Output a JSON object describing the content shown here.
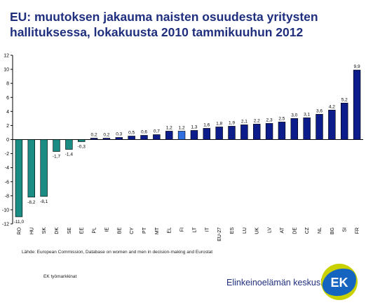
{
  "title_line1": "EU: muutoksen jakauma naisten osuudesta yritysten",
  "title_line2": "hallituksessa, lokakuusta 2010 tammikuuhun 2012",
  "source": "Lähde: European Commission, Database on women and men  in decision-making and Eurostat",
  "footer_left": "EK työmarkkinat",
  "brand_name": "Elinkeinoelämän keskusliitto",
  "logo_text": "EK",
  "colors": {
    "negative": "#1a8c84",
    "positive": "#0c1c8a",
    "highlight": "#2f6fe0",
    "title": "#1f2f7e",
    "logo_blue": "#1565c0",
    "logo_yellow": "#c9d200"
  },
  "chart_data": {
    "type": "bar",
    "categories": [
      "RO",
      "HU",
      "SK",
      "DK",
      "SE",
      "EE",
      "PL",
      "IE",
      "BE",
      "CY",
      "PT",
      "MT",
      "EL",
      "FI",
      "LT",
      "IT",
      "EU-27",
      "ES",
      "LU",
      "UK",
      "LV",
      "AT",
      "DE",
      "CZ",
      "NL",
      "BG",
      "SI",
      "FR"
    ],
    "values": [
      -11.0,
      -8.2,
      -8.1,
      -1.7,
      -1.4,
      -0.3,
      0.2,
      0.2,
      0.3,
      0.5,
      0.6,
      0.7,
      1.2,
      1.2,
      1.3,
      1.6,
      1.8,
      1.9,
      2.1,
      2.2,
      2.3,
      2.5,
      3.0,
      3.1,
      3.6,
      4.2,
      5.2,
      9.9
    ],
    "value_labels": [
      "-11,0",
      "-8,2",
      "-8,1",
      "-1,7",
      "-1,4",
      "-0,3",
      "0,2",
      "0,2",
      "0,3",
      "0,5",
      "0,6",
      "0,7",
      "1,2",
      "1,2",
      "1,3",
      "1,6",
      "1,8",
      "1,9",
      "2,1",
      "2,2",
      "2,3",
      "2,5",
      "3,0",
      "3,1",
      "3,6",
      "4,2",
      "5,2",
      "9,9"
    ],
    "highlight_category": "FI",
    "ylim": [
      -12,
      12
    ],
    "yticks": [
      -12,
      -10,
      -8,
      -6,
      -4,
      -2,
      0,
      2,
      4,
      6,
      8,
      10,
      12
    ],
    "grid": false,
    "legend": "none"
  }
}
